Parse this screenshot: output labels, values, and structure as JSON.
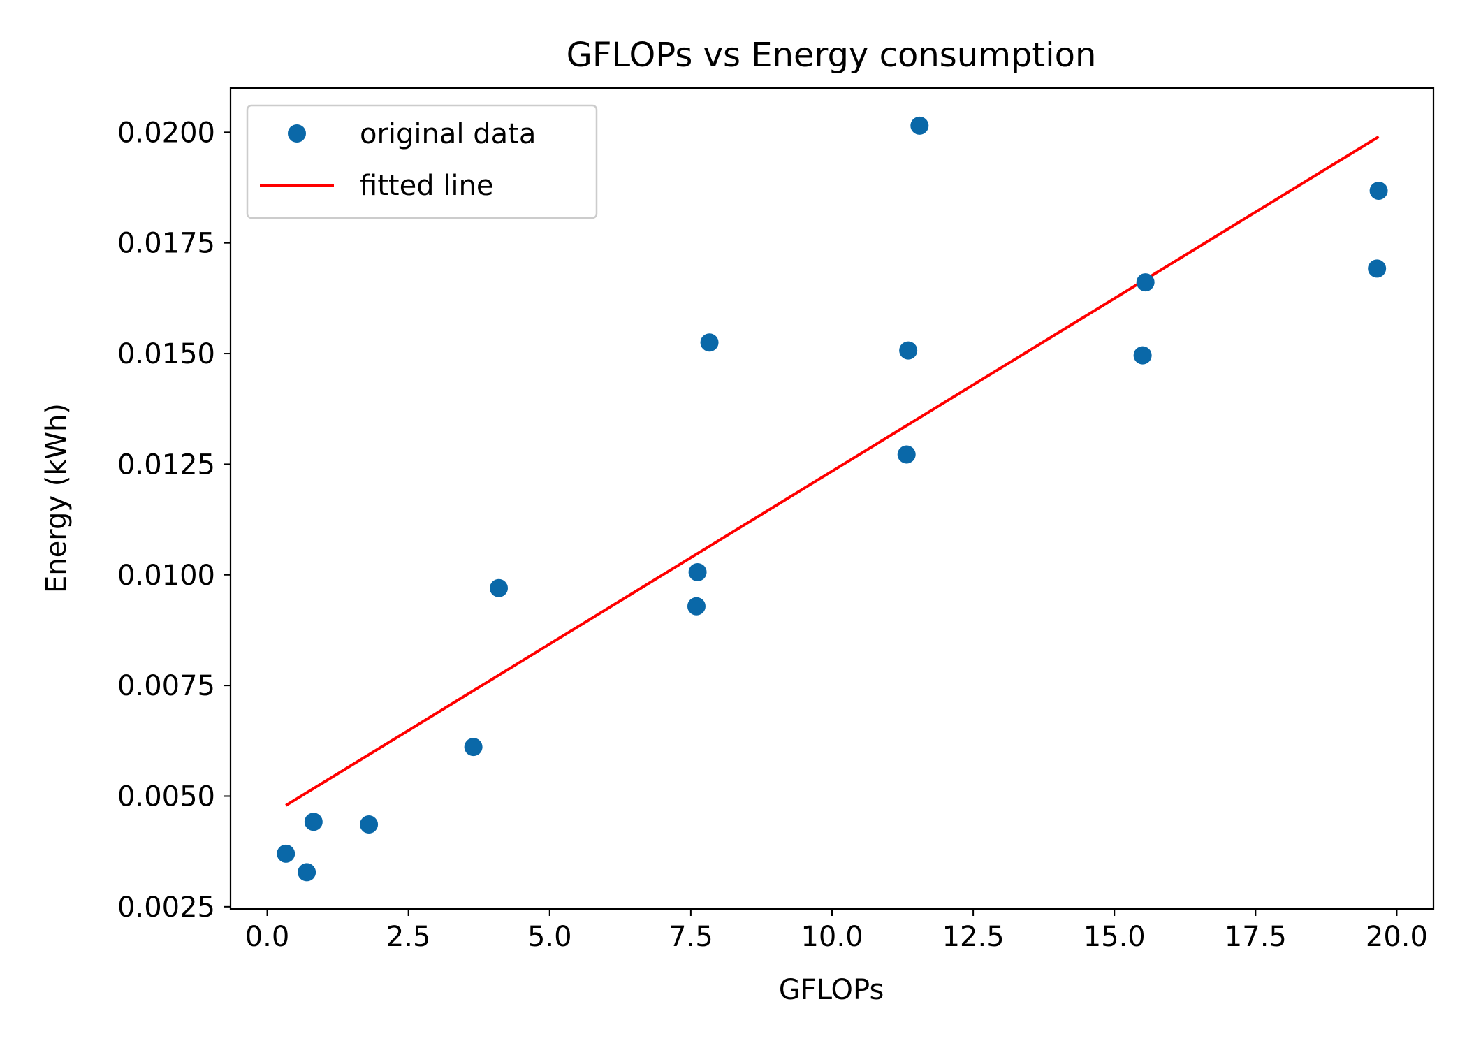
{
  "chart_data": {
    "type": "scatter",
    "title": "GFLOPs vs Energy consumption",
    "xlabel": "GFLOPs",
    "ylabel": "Energy (kWh)",
    "xlim": [
      -0.65,
      20.65
    ],
    "ylim": [
      0.00245,
      0.021
    ],
    "xticks": [
      0.0,
      2.5,
      5.0,
      7.5,
      10.0,
      12.5,
      15.0,
      17.5,
      20.0
    ],
    "xtick_labels": [
      "0.0",
      "2.5",
      "5.0",
      "7.5",
      "10.0",
      "12.5",
      "15.0",
      "17.5",
      "20.0"
    ],
    "yticks": [
      0.0025,
      0.005,
      0.0075,
      0.01,
      0.0125,
      0.015,
      0.0175,
      0.02
    ],
    "ytick_labels": [
      "0.0025",
      "0.0050",
      "0.0075",
      "0.0100",
      "0.0125",
      "0.0150",
      "0.0175",
      "0.0200"
    ],
    "grid": false,
    "legend_position": "top-left",
    "series": [
      {
        "name": "original data",
        "kind": "scatter",
        "color": "#0a68a8",
        "points": [
          {
            "x": 0.33,
            "y": 0.0037
          },
          {
            "x": 0.7,
            "y": 0.00328
          },
          {
            "x": 0.82,
            "y": 0.00442
          },
          {
            "x": 1.8,
            "y": 0.00436
          },
          {
            "x": 3.65,
            "y": 0.00611
          },
          {
            "x": 4.1,
            "y": 0.0097
          },
          {
            "x": 7.6,
            "y": 0.00929
          },
          {
            "x": 7.62,
            "y": 0.01006
          },
          {
            "x": 7.83,
            "y": 0.01525
          },
          {
            "x": 11.32,
            "y": 0.01272
          },
          {
            "x": 11.35,
            "y": 0.01507
          },
          {
            "x": 11.55,
            "y": 0.02015
          },
          {
            "x": 15.5,
            "y": 0.01496
          },
          {
            "x": 15.55,
            "y": 0.01661
          },
          {
            "x": 19.65,
            "y": 0.01692
          },
          {
            "x": 19.68,
            "y": 0.01868
          }
        ]
      },
      {
        "name": "fitted line",
        "kind": "line",
        "color": "#ff0000",
        "points": [
          {
            "x": 0.33,
            "y": 0.00479
          },
          {
            "x": 19.68,
            "y": 0.0199
          }
        ]
      }
    ]
  }
}
